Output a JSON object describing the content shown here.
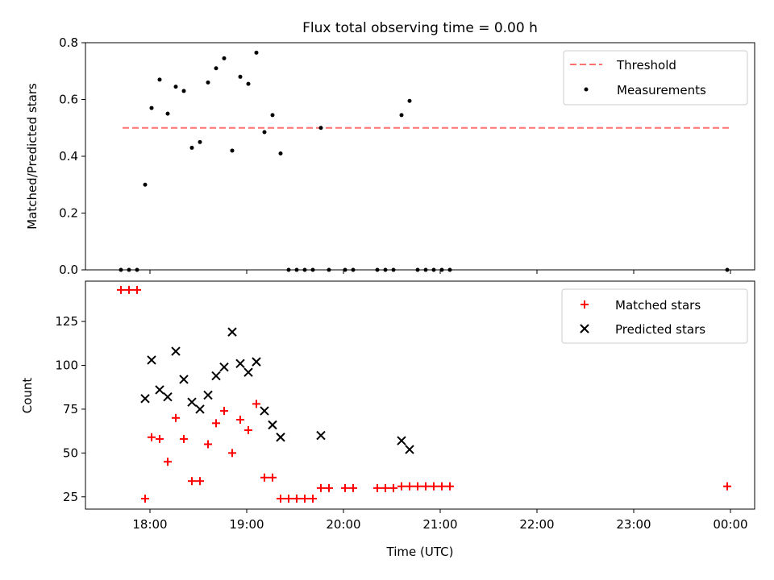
{
  "figure": {
    "title": "Flux total observing time = 0.00 h",
    "xlabel": "Time (UTC)",
    "x_ticks": [
      "18:00",
      "19:00",
      "20:00",
      "21:00",
      "22:00",
      "23:00",
      "00:00"
    ]
  },
  "chart_data": [
    {
      "type": "scatter",
      "ylabel": "Matched/Predicted stars",
      "ylim": [
        0,
        0.8
      ],
      "y_ticks": [
        "0.0",
        "0.2",
        "0.4",
        "0.6",
        "0.8"
      ],
      "legend_position": "top-right",
      "threshold": {
        "name": "Threshold",
        "value": 0.5,
        "x_start": "17:43",
        "x_end": "23:59",
        "color": "#ff7070",
        "style": "dashed"
      },
      "series": [
        {
          "name": "Measurements",
          "color": "#000000",
          "marker": "dot",
          "x": [
            "17:42",
            "17:47",
            "17:52",
            "17:57",
            "18:01",
            "18:06",
            "18:11",
            "18:16",
            "18:21",
            "18:26",
            "18:31",
            "18:36",
            "18:41",
            "18:46",
            "18:51",
            "18:56",
            "19:01",
            "19:06",
            "19:11",
            "19:16",
            "19:21",
            "19:26",
            "19:31",
            "19:36",
            "19:41",
            "19:46",
            "19:51",
            "20:01",
            "20:06",
            "20:21",
            "20:26",
            "20:31",
            "20:36",
            "20:41",
            "20:46",
            "20:51",
            "20:56",
            "21:01",
            "21:06",
            "23:58"
          ],
          "y": [
            0,
            0,
            0,
            0.3,
            0.57,
            0.67,
            0.55,
            0.645,
            0.63,
            0.43,
            0.45,
            0.66,
            0.71,
            0.745,
            0.42,
            0.68,
            0.655,
            0.765,
            0.485,
            0.545,
            0.41,
            0,
            0,
            0,
            0,
            0.5,
            0,
            0,
            0,
            0,
            0,
            0,
            0.545,
            0.595,
            0,
            0,
            0,
            0,
            0,
            0
          ]
        }
      ]
    },
    {
      "type": "scatter",
      "ylabel": "Count",
      "ylim": [
        18,
        148
      ],
      "y_ticks": [
        "25",
        "50",
        "75",
        "100",
        "125"
      ],
      "legend_position": "top-right",
      "series": [
        {
          "name": "Matched stars",
          "color": "#ff0000",
          "marker": "plus",
          "x": [
            "17:42",
            "17:47",
            "17:52",
            "17:57",
            "18:01",
            "18:06",
            "18:11",
            "18:16",
            "18:21",
            "18:26",
            "18:31",
            "18:36",
            "18:41",
            "18:46",
            "18:51",
            "18:56",
            "19:01",
            "19:06",
            "19:11",
            "19:16",
            "19:21",
            "19:26",
            "19:31",
            "19:36",
            "19:41",
            "19:46",
            "19:51",
            "20:01",
            "20:06",
            "20:21",
            "20:26",
            "20:31",
            "20:36",
            "20:41",
            "20:46",
            "20:51",
            "20:56",
            "21:01",
            "21:06",
            "23:58"
          ],
          "y": [
            143,
            143,
            143,
            24,
            59,
            58,
            45,
            70,
            58,
            34,
            34,
            55,
            67,
            74,
            50,
            69,
            63,
            78,
            36,
            36,
            24,
            24,
            24,
            24,
            24,
            30,
            30,
            30,
            30,
            30,
            30,
            30,
            31,
            31,
            31,
            31,
            31,
            31,
            31,
            31
          ]
        },
        {
          "name": "Predicted stars",
          "color": "#000000",
          "marker": "x",
          "x": [
            "17:57",
            "18:01",
            "18:06",
            "18:11",
            "18:16",
            "18:21",
            "18:26",
            "18:31",
            "18:36",
            "18:41",
            "18:46",
            "18:51",
            "18:56",
            "19:01",
            "19:06",
            "19:11",
            "19:16",
            "19:21",
            "19:46",
            "20:36",
            "20:41"
          ],
          "y": [
            81,
            103,
            86,
            82,
            108,
            92,
            79,
            75,
            83,
            94,
            99,
            119,
            101,
            96,
            102,
            74,
            66,
            59,
            60,
            57,
            52
          ]
        }
      ]
    }
  ]
}
